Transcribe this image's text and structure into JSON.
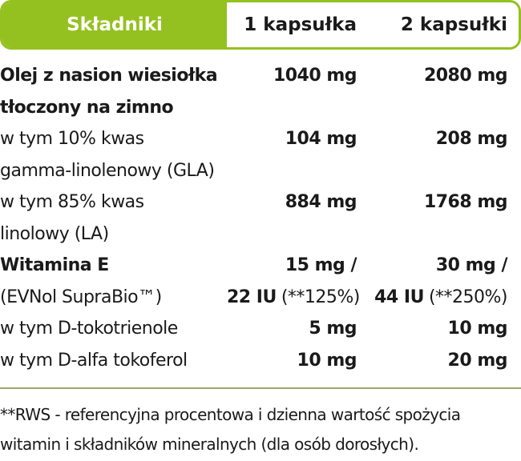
{
  "header": [
    "Składniki",
    "1 kapsułka",
    "2 kapsułki"
  ],
  "rows": [
    {
      "cells": [
        [
          [
            {
              "text": "Olej z nasion wiesiołka",
              "bold": true
            }
          ],
          [
            {
              "text": "tłoczony na zimno",
              "bold": true
            }
          ]
        ],
        [
          [
            {
              "text": "1040 mg",
              "bold": true
            }
          ]
        ],
        [
          [
            {
              "text": "2080 mg",
              "bold": true
            }
          ]
        ]
      ]
    },
    {
      "cells": [
        [
          [
            {
              "text": "w tym 10% kwas",
              "bold": false
            }
          ],
          [
            {
              "text": "gamma-linolenowy (GLA)",
              "bold": false
            }
          ]
        ],
        [
          [
            {
              "text": "104 mg",
              "bold": true
            }
          ]
        ],
        [
          [
            {
              "text": "208 mg",
              "bold": true
            }
          ]
        ]
      ]
    },
    {
      "cells": [
        [
          [
            {
              "text": "w tym 85% kwas",
              "bold": false
            }
          ],
          [
            {
              "text": "linolowy (LA)",
              "bold": false
            }
          ]
        ],
        [
          [
            {
              "text": "884 mg",
              "bold": true
            }
          ]
        ],
        [
          [
            {
              "text": "1768 mg",
              "bold": true
            }
          ]
        ]
      ]
    },
    {
      "cells": [
        [
          [
            {
              "text": "Witamina E",
              "bold": true
            }
          ],
          [
            {
              "text": "(EVNol SupraBio™)",
              "bold": false
            }
          ]
        ],
        [
          [
            {
              "text": "15 mg /",
              "bold": true
            }
          ],
          [
            {
              "text": "22 IU",
              "bold": true
            },
            {
              "text": "(**125%)",
              "bold": false
            }
          ]
        ],
        [
          [
            {
              "text": "30 mg /",
              "bold": true
            }
          ],
          [
            {
              "text": "44 IU",
              "bold": true
            },
            {
              "text": "(**250%)",
              "bold": false
            }
          ]
        ]
      ]
    },
    {
      "cells": [
        [
          [
            {
              "text": "w tym D-tokotrienole",
              "bold": false
            }
          ]
        ],
        [
          [
            {
              "text": "5 mg",
              "bold": true
            }
          ]
        ],
        [
          [
            {
              "text": "10 mg",
              "bold": true
            }
          ]
        ]
      ]
    },
    {
      "cells": [
        [
          [
            {
              "text": "w tym D-alfa tokoferol",
              "bold": false
            }
          ]
        ],
        [
          [
            {
              "text": "10 mg",
              "bold": true
            }
          ]
        ],
        [
          [
            {
              "text": "20 mg",
              "bold": true
            }
          ]
        ]
      ]
    }
  ],
  "footnote": [
    "**RWS - referencyjna procentowa i dzienna wartość spożycia",
    "witamin i składników mineralnych (dla osób dorosłych)."
  ]
}
